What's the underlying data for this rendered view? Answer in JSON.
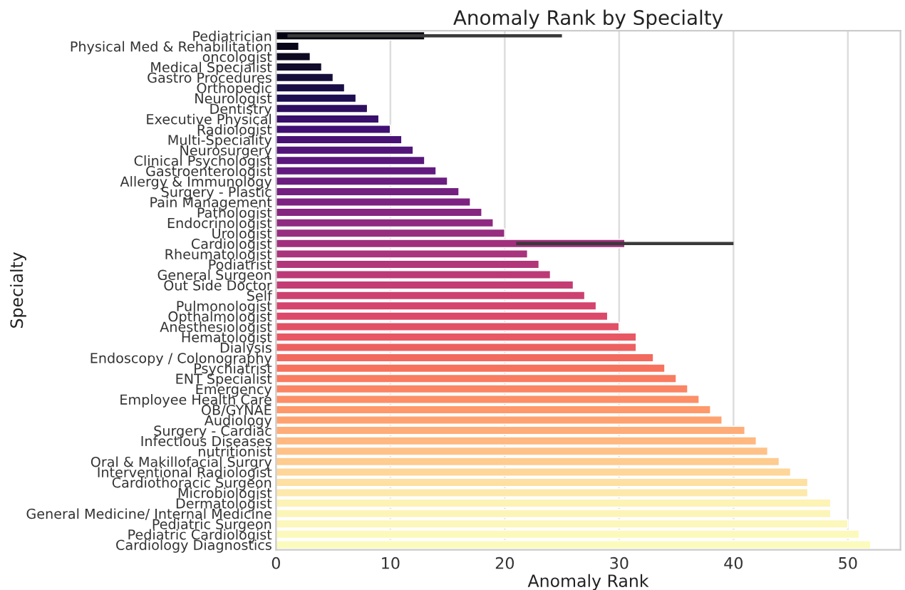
{
  "chart_data": {
    "type": "bar",
    "orientation": "horizontal",
    "title": "Anomaly Rank by Specialty",
    "xlabel": "Anomaly Rank",
    "ylabel": "Specialty",
    "categories": [
      "Pediatrician",
      "Physical Med & Rehabilitation",
      "oncologist",
      "Medical Specialist",
      "Gastro Procedures",
      "Orthopedic",
      "Neurologist",
      "Dentistry",
      "Executive Physical",
      "Radiologist",
      "Multi-Speciality",
      "Neurosurgery",
      "Clinical Psychologist",
      "Gastroenterologist",
      "Allergy & Immunology",
      "Surgery - Plastic",
      "Pain Management",
      "Pathologist",
      "Endocrinologist",
      "Urologist",
      "Cardiologist",
      "Rheumatologist",
      "Podiatrist",
      "General Surgeon",
      "Out Side Doctor",
      "Self",
      "Pulmonologist",
      "Opthalmologist",
      "Anesthesiologist",
      "Hematologist",
      "Dialysis",
      "Endoscopy / Colonography",
      "Psychiatrist",
      "ENT Specialist",
      "Emergency",
      "Employee Health Care",
      "OB/GYNAE",
      "Audiology",
      "Surgery - Cardiac",
      "Infectious Diseases",
      "nutritionist",
      "Oral & Makillofacial Surgry",
      "Interventional Radiologist",
      "Cardiothoracic Surgeon",
      "Microbiologist",
      "Dermatologist",
      "General Medicine/ Internal Medicine",
      "Pediatric Surgeon",
      "Pediatric Cardiologist",
      "Cardiology Diagnostics"
    ],
    "values": [
      13,
      2,
      3,
      4,
      5,
      6,
      7,
      8,
      9,
      10,
      11,
      12,
      13,
      14,
      15,
      16,
      17,
      18,
      19,
      20,
      30.5,
      22,
      23,
      24,
      26,
      27,
      28,
      29,
      30,
      31.5,
      31.5,
      33,
      34,
      35,
      36,
      37,
      38,
      39,
      41,
      42,
      43,
      44,
      45,
      46.5,
      46.5,
      48.5,
      48.5,
      50,
      51,
      52
    ],
    "errors": [
      [
        1,
        25
      ],
      null,
      null,
      null,
      null,
      null,
      null,
      null,
      null,
      null,
      null,
      null,
      null,
      null,
      null,
      null,
      null,
      null,
      null,
      null,
      [
        21,
        40
      ],
      null,
      null,
      null,
      null,
      null,
      null,
      null,
      null,
      null,
      null,
      null,
      null,
      null,
      null,
      null,
      null,
      null,
      null,
      null,
      null,
      null,
      null,
      null,
      null,
      null,
      null,
      null,
      null,
      null
    ],
    "colors": [
      "#04030f",
      "#09061a",
      "#0d0921",
      "#110c2b",
      "#160e3a",
      "#190e45",
      "#1d0e51",
      "#2f0f5f",
      "#380f6b",
      "#401072",
      "#491375",
      "#521579",
      "#5a177c",
      "#631a80",
      "#6c1d80",
      "#742080",
      "#7d2381",
      "#852681",
      "#8e2a81",
      "#972d7f",
      "#a0307d",
      "#a9337c",
      "#b2367a",
      "#bb3977",
      "#c33d74",
      "#cc4170",
      "#d4446c",
      "#dc4869",
      "#e25066",
      "#e85863",
      "#ed6061",
      "#f2695e",
      "#f7715c",
      "#f97b60",
      "#fa8564",
      "#fc8f67",
      "#fd996b",
      "#fea370",
      "#fead78",
      "#feb880",
      "#fec288",
      "#fecc8f",
      "#fed699",
      "#fde0a2",
      "#fde9ac",
      "#fcf3b5",
      "#fcf5b8",
      "#fcf7ba",
      "#fcf9bc",
      "#fcfbbe"
    ],
    "xlim": [
      0,
      54.6
    ],
    "xticks": [
      0,
      10,
      20,
      30,
      40,
      50
    ],
    "grid": "x"
  }
}
